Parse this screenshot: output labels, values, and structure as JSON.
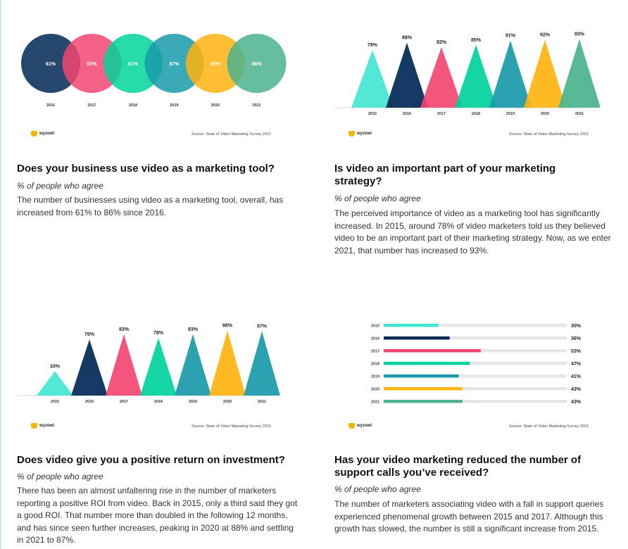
{
  "colors": [
    "#002855",
    "#f24672",
    "#00d39b",
    "#1a9aaa",
    "#ffb30f",
    "#4bb38d",
    "#42e6d1"
  ],
  "brand": "wyzowl",
  "source": "Source: State of Video Marketing Survey 2021",
  "cards": [
    {
      "title": "Does your business use video as a marketing tool?",
      "subtitle": "% of people who agree",
      "body": "The number of businesses using video as a marketing tool, overall, has increased from 61% to 86% since 2016."
    },
    {
      "title": "Is video an important part of your marketing strategy?",
      "subtitle": "% of people who agree",
      "body": "The perceived importance of video as a marketing tool has significantly increased. In 2015, around 78% of video marketers told us they believed video to be an important part of their marketing strategy. Now, as we enter 2021, that number has increased to 93%."
    },
    {
      "title": "Does video give you a positive return on investment?",
      "subtitle": "% of people who agree",
      "body": "There has been an almost unfaltering rise in the number of marketers reporting a positive ROI from video. Back in 2015, only a third said they got a good ROI. That number more than doubled in the following 12 months, and has since seen further increases, peaking in 2020 at 88% and settling in 2021 to 87%."
    },
    {
      "title": "Has your video marketing reduced the number of support calls you’ve received?",
      "subtitle": "% of people who agree",
      "body": "The number of marketers associating video with a fall in support queries experienced phenomenal growth between 2015 and 2017. Although this growth has slowed, the number is still a significant increase from 2015."
    }
  ],
  "chart_data": [
    {
      "type": "bubble",
      "categories": [
        "2016",
        "2017",
        "2018",
        "2019",
        "2020",
        "2021"
      ],
      "values": [
        61,
        63,
        81,
        87,
        85,
        86
      ],
      "labels": [
        "61%",
        "63%",
        "81%",
        "87%",
        "85%",
        "86%"
      ],
      "series_colors": [
        "#002855",
        "#f24672",
        "#00d39b",
        "#1a9aaa",
        "#ffb30f",
        "#4bb38d"
      ]
    },
    {
      "type": "bar",
      "style": "triangle",
      "categories": [
        "2015",
        "2016",
        "2017",
        "2018",
        "2019",
        "2020",
        "2021"
      ],
      "values": [
        78,
        88,
        82,
        85,
        91,
        92,
        93
      ],
      "labels": [
        "78%",
        "88%",
        "82%",
        "85%",
        "91%",
        "92%",
        "93%"
      ],
      "series_colors": [
        "#42e6d1",
        "#002855",
        "#f24672",
        "#00d39b",
        "#1a9aaa",
        "#ffb30f",
        "#4bb38d"
      ]
    },
    {
      "type": "bar",
      "style": "triangle",
      "categories": [
        "2015",
        "2016",
        "2017",
        "2018",
        "2019",
        "2020",
        "2021"
      ],
      "values": [
        33,
        76,
        83,
        78,
        83,
        88,
        87
      ],
      "labels": [
        "33%",
        "76%",
        "83%",
        "78%",
        "83%",
        "88%",
        "87%"
      ],
      "series_colors": [
        "#42e6d1",
        "#002855",
        "#f24672",
        "#00d39b",
        "#1a9aaa",
        "#ffb30f",
        "#1a9aaa"
      ]
    },
    {
      "type": "bar",
      "orientation": "horizontal",
      "categories": [
        "2015",
        "2016",
        "2017",
        "2018",
        "2019",
        "2020",
        "2021"
      ],
      "values": [
        30,
        36,
        53,
        47,
        41,
        43,
        43
      ],
      "labels": [
        "30%",
        "36%",
        "53%",
        "47%",
        "41%",
        "43%",
        "43%"
      ],
      "xlim": [
        0,
        100
      ],
      "series_colors": [
        "#42e6d1",
        "#002855",
        "#f24672",
        "#00d39b",
        "#1a9aaa",
        "#ffb30f",
        "#4bb38d"
      ]
    }
  ]
}
